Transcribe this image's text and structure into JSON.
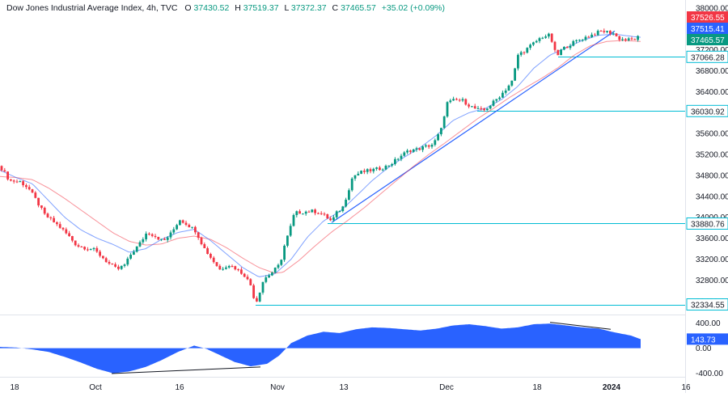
{
  "header": {
    "instrument": "Dow Jones Industrial Average Index, 4h, TVC",
    "o_label": "O",
    "o_value": "37430.52",
    "h_label": "H",
    "h_value": "37519.37",
    "l_label": "L",
    "l_value": "37372.37",
    "c_label": "C",
    "c_value": "37465.57",
    "change": "+35.02 (+0.09%)",
    "up_color": "#089981",
    "down_color": "#f23645"
  },
  "chart_data": [
    {
      "type": "candlestick",
      "title": "",
      "y_ticks": [
        "38000.00",
        "37600.00",
        "37200.00",
        "36800.00",
        "36400.00",
        "36000.00",
        "35600.00",
        "35200.00",
        "34800.00",
        "34400.00",
        "34000.00",
        "33600.00",
        "33200.00",
        "32800.00",
        "32400.00"
      ],
      "ylim": [
        32250,
        38060
      ],
      "x_ticks": [
        "18",
        "Oct",
        "16",
        "Nov",
        "13",
        "Dec",
        "18",
        "2024",
        "16"
      ],
      "price_labels": [
        {
          "text": "37526.55",
          "value": 37526.55,
          "color": "#f23645"
        },
        {
          "text": "37515.41",
          "value": 37515.41,
          "color": "#2962ff"
        },
        {
          "text": "37465.57",
          "value": 37465.57,
          "color": "#089981"
        }
      ],
      "levels": [
        {
          "text": "37066.28",
          "value": 37066.28
        },
        {
          "text": "36030.92",
          "value": 36030.92
        },
        {
          "text": "33880.76",
          "value": 33880.76
        },
        {
          "text": "32334.55",
          "value": 32334.55
        }
      ],
      "level_color": "#00bcd4",
      "trendline": {
        "from": [
          410,
          33900
        ],
        "to": [
          760,
          37560
        ],
        "color": "#2962ff"
      },
      "fast_ma_color": "#2962ff",
      "slow_ma_color": "#f23645",
      "anchors": [
        [
          0,
          34980
        ],
        [
          12,
          34700
        ],
        [
          25,
          34680
        ],
        [
          35,
          34560
        ],
        [
          45,
          34320
        ],
        [
          55,
          34050
        ],
        [
          65,
          33930
        ],
        [
          75,
          33800
        ],
        [
          85,
          33640
        ],
        [
          95,
          33460
        ],
        [
          105,
          33420
        ],
        [
          115,
          33390
        ],
        [
          125,
          33260
        ],
        [
          135,
          33110
        ],
        [
          145,
          33000
        ],
        [
          155,
          33100
        ],
        [
          162,
          33300
        ],
        [
          172,
          33480
        ],
        [
          182,
          33720
        ],
        [
          192,
          33640
        ],
        [
          202,
          33540
        ],
        [
          212,
          33700
        ],
        [
          222,
          33960
        ],
        [
          232,
          33860
        ],
        [
          242,
          33740
        ],
        [
          252,
          33420
        ],
        [
          262,
          33200
        ],
        [
          272,
          33000
        ],
        [
          282,
          33100
        ],
        [
          292,
          33020
        ],
        [
          302,
          32900
        ],
        [
          310,
          32700
        ],
        [
          316,
          32340
        ],
        [
          326,
          32820
        ],
        [
          336,
          32940
        ],
        [
          346,
          33100
        ],
        [
          352,
          33480
        ],
        [
          358,
          33750
        ],
        [
          364,
          34080
        ],
        [
          374,
          34100
        ],
        [
          384,
          34120
        ],
        [
          394,
          34100
        ],
        [
          404,
          34000
        ],
        [
          410,
          33920
        ],
        [
          416,
          34080
        ],
        [
          424,
          34200
        ],
        [
          430,
          34480
        ],
        [
          436,
          34780
        ],
        [
          446,
          34860
        ],
        [
          456,
          34890
        ],
        [
          466,
          34920
        ],
        [
          476,
          34960
        ],
        [
          486,
          35050
        ],
        [
          496,
          35180
        ],
        [
          506,
          35280
        ],
        [
          516,
          35300
        ],
        [
          526,
          35350
        ],
        [
          536,
          35400
        ],
        [
          546,
          35700
        ],
        [
          552,
          36180
        ],
        [
          562,
          36240
        ],
        [
          572,
          36230
        ],
        [
          582,
          36120
        ],
        [
          590,
          36060
        ],
        [
          598,
          36040
        ],
        [
          606,
          36140
        ],
        [
          614,
          36260
        ],
        [
          624,
          36420
        ],
        [
          634,
          36620
        ],
        [
          640,
          37100
        ],
        [
          650,
          37200
        ],
        [
          660,
          37330
        ],
        [
          670,
          37450
        ],
        [
          680,
          37480
        ],
        [
          688,
          37060
        ],
        [
          694,
          37200
        ],
        [
          704,
          37300
        ],
        [
          714,
          37380
        ],
        [
          724,
          37440
        ],
        [
          734,
          37500
        ],
        [
          744,
          37560
        ],
        [
          752,
          37540
        ],
        [
          758,
          37520
        ],
        [
          764,
          37420
        ],
        [
          774,
          37390
        ],
        [
          784,
          37400
        ],
        [
          792,
          37465
        ]
      ],
      "slow_anchors": [
        [
          0,
          34780
        ],
        [
          20,
          34760
        ],
        [
          40,
          34720
        ],
        [
          60,
          34560
        ],
        [
          80,
          34360
        ],
        [
          100,
          34140
        ],
        [
          120,
          33920
        ],
        [
          140,
          33700
        ],
        [
          160,
          33540
        ],
        [
          180,
          33470
        ],
        [
          200,
          33490
        ],
        [
          220,
          33600
        ],
        [
          240,
          33640
        ],
        [
          260,
          33580
        ],
        [
          280,
          33420
        ],
        [
          300,
          33220
        ],
        [
          320,
          33040
        ],
        [
          340,
          32930
        ],
        [
          350,
          32950
        ],
        [
          370,
          33180
        ],
        [
          390,
          33460
        ],
        [
          410,
          33720
        ],
        [
          430,
          33940
        ],
        [
          450,
          34180
        ],
        [
          470,
          34440
        ],
        [
          490,
          34700
        ],
        [
          510,
          34960
        ],
        [
          530,
          35200
        ],
        [
          550,
          35420
        ],
        [
          570,
          35650
        ],
        [
          590,
          35880
        ],
        [
          610,
          36080
        ],
        [
          630,
          36290
        ],
        [
          650,
          36480
        ],
        [
          670,
          36660
        ],
        [
          690,
          36860
        ],
        [
          710,
          37100
        ],
        [
          730,
          37280
        ],
        [
          750,
          37360
        ],
        [
          770,
          37380
        ],
        [
          792,
          37360
        ]
      ],
      "fast_anchors": [
        [
          0,
          34900
        ],
        [
          20,
          34760
        ],
        [
          40,
          34640
        ],
        [
          60,
          34320
        ],
        [
          80,
          34000
        ],
        [
          100,
          33760
        ],
        [
          120,
          33600
        ],
        [
          140,
          33480
        ],
        [
          160,
          33330
        ],
        [
          180,
          33400
        ],
        [
          200,
          33580
        ],
        [
          220,
          33710
        ],
        [
          240,
          33770
        ],
        [
          260,
          33560
        ],
        [
          280,
          33300
        ],
        [
          300,
          33040
        ],
        [
          320,
          32860
        ],
        [
          340,
          32920
        ],
        [
          360,
          33200
        ],
        [
          380,
          33620
        ],
        [
          400,
          33930
        ],
        [
          420,
          34110
        ],
        [
          440,
          34400
        ],
        [
          460,
          34700
        ],
        [
          480,
          34950
        ],
        [
          500,
          35150
        ],
        [
          520,
          35340
        ],
        [
          540,
          35570
        ],
        [
          560,
          35850
        ],
        [
          580,
          36000
        ],
        [
          600,
          36080
        ],
        [
          620,
          36250
        ],
        [
          640,
          36500
        ],
        [
          660,
          36850
        ],
        [
          680,
          37100
        ],
        [
          700,
          37240
        ],
        [
          720,
          37380
        ],
        [
          740,
          37480
        ],
        [
          760,
          37500
        ],
        [
          780,
          37460
        ],
        [
          792,
          37440
        ]
      ]
    },
    {
      "type": "area",
      "title": "",
      "y_ticks": [
        "400.00",
        "0.00",
        "-400.00"
      ],
      "ylim": [
        -430,
        470
      ],
      "value_label": {
        "text": "143.73",
        "value": 143.73,
        "color": "#2962ff"
      },
      "fill_color": "#2962ff",
      "anchors": [
        [
          0,
          20
        ],
        [
          20,
          10
        ],
        [
          40,
          -20
        ],
        [
          60,
          -60
        ],
        [
          80,
          -140
        ],
        [
          100,
          -230
        ],
        [
          120,
          -330
        ],
        [
          140,
          -400
        ],
        [
          160,
          -370
        ],
        [
          180,
          -300
        ],
        [
          200,
          -190
        ],
        [
          220,
          -60
        ],
        [
          240,
          40
        ],
        [
          255,
          -10
        ],
        [
          270,
          -100
        ],
        [
          290,
          -220
        ],
        [
          310,
          -290
        ],
        [
          330,
          -250
        ],
        [
          345,
          -120
        ],
        [
          360,
          80
        ],
        [
          380,
          200
        ],
        [
          400,
          260
        ],
        [
          420,
          240
        ],
        [
          440,
          300
        ],
        [
          460,
          330
        ],
        [
          480,
          320
        ],
        [
          500,
          300
        ],
        [
          520,
          280
        ],
        [
          540,
          310
        ],
        [
          560,
          360
        ],
        [
          580,
          380
        ],
        [
          600,
          350
        ],
        [
          620,
          310
        ],
        [
          640,
          330
        ],
        [
          660,
          380
        ],
        [
          680,
          390
        ],
        [
          700,
          360
        ],
        [
          720,
          330
        ],
        [
          740,
          310
        ],
        [
          760,
          250
        ],
        [
          780,
          200
        ],
        [
          792,
          143
        ]
      ],
      "divergence_lines": [
        {
          "from": [
            138,
            -405
          ],
          "to": [
            322,
            -300
          ]
        },
        {
          "from": [
            680,
            410
          ],
          "to": [
            755,
            300
          ]
        }
      ]
    }
  ]
}
